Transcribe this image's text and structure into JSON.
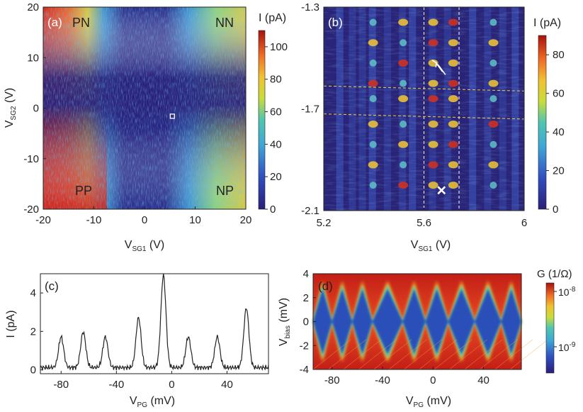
{
  "figure_panels": [
    "(a)",
    "(b)",
    "(c)",
    "(d)"
  ],
  "colors": {
    "map_deep": "#2a1f7a",
    "map_mid": "#2f6fd1",
    "map_cyan": "#3fb8c6",
    "map_yellow": "#f1e33a",
    "map_orange": "#f5832a",
    "map_red": "#d11f17",
    "guide_white": "#ffffff",
    "guide_yellow": "#f4d03f",
    "trace": "#222222"
  },
  "chart_data": [
    {
      "id": "a",
      "panel_label": "(a)",
      "type": "heatmap",
      "xlabel_main": "V",
      "xlabel_sub": "SG1",
      "xlabel_unit": " (V)",
      "ylabel_main": "V",
      "ylabel_sub": "SG2",
      "ylabel_unit": " (V)",
      "xlim": [
        -20,
        20
      ],
      "ylim": [
        -20,
        20
      ],
      "xticks": [
        "-20",
        "-10",
        "0",
        "10",
        "20"
      ],
      "yticks": [
        "20",
        "10",
        "0",
        "-10",
        "-20"
      ],
      "colorbar_label": "I (pA)",
      "colorbar_range": [
        0,
        110
      ],
      "colorbar_ticks": [
        "100",
        "80",
        "60",
        "40",
        "20",
        "0"
      ],
      "quadrant_labels": [
        "PN",
        "NN",
        "PP",
        "NP"
      ],
      "marker": {
        "type": "square",
        "x": 5.5,
        "y": -1.6
      }
    },
    {
      "id": "b",
      "panel_label": "(b)",
      "type": "heatmap",
      "xlabel_main": "V",
      "xlabel_sub": "SG1",
      "xlabel_unit": " (V)",
      "xlim": [
        5.2,
        6.0
      ],
      "ylim": [
        -2.1,
        -1.3
      ],
      "xticks": [
        "5.2",
        "5.6",
        "6"
      ],
      "yticks": [
        "-1.3",
        "-1.7",
        "-2.1"
      ],
      "colorbar_label": "I (pA)",
      "colorbar_range": [
        0,
        90
      ],
      "colorbar_ticks": [
        "80",
        "60",
        "40",
        "20",
        "0"
      ],
      "dashed_lines_x": [
        5.6,
        5.74
      ],
      "dashed_lines_y": [
        [
          -1.61,
          -1.63
        ],
        [
          -1.72,
          -1.74
        ]
      ],
      "cross_marker": {
        "x": 5.67,
        "y": -2.02
      },
      "arrow": {
        "x_from": 5.68,
        "y_from": -1.56,
        "x_to": 5.65,
        "y_to": -1.52
      }
    },
    {
      "id": "c",
      "panel_label": "(c)",
      "type": "line",
      "xlabel_main": "V",
      "xlabel_sub": "PG",
      "xlabel_unit": " (mV)",
      "ylabel": "I (pA)",
      "xlim": [
        -95,
        70
      ],
      "ylim": [
        -0.2,
        5
      ],
      "xticks": [
        "-80",
        "-40",
        "0",
        "40"
      ],
      "yticks": [
        "4",
        "2",
        "0"
      ],
      "peaks": [
        {
          "x": -80,
          "value": 1.6
        },
        {
          "x": -64,
          "value": 1.85
        },
        {
          "x": -48,
          "value": 1.6
        },
        {
          "x": -24,
          "value": 2.6
        },
        {
          "x": -6,
          "value": 4.8
        },
        {
          "x": 12,
          "value": 1.6
        },
        {
          "x": 33,
          "value": 1.6
        },
        {
          "x": 54,
          "value": 3.1
        }
      ]
    },
    {
      "id": "d",
      "panel_label": "(d)",
      "type": "heatmap",
      "xlabel_main": "V",
      "xlabel_sub": "PG",
      "xlabel_unit": " (mV)",
      "ylabel_main": "V",
      "ylabel_sub": "bias",
      "ylabel_unit": " (mV)",
      "xlim": [
        -95,
        70
      ],
      "ylim": [
        -4,
        4
      ],
      "xticks": [
        "-80",
        "-40",
        "0",
        "40"
      ],
      "yticks": [
        "4",
        "2",
        "0",
        "-2",
        "-4"
      ],
      "colorbar_label": "G (1/Ω)",
      "colorbar_ticks": [
        "10",
        "10"
      ],
      "colorbar_exponents": [
        "-8",
        "-9"
      ],
      "diamond_nodes_mV": [
        -95,
        -80,
        -64,
        -48,
        -24,
        -6,
        12,
        33,
        54,
        70
      ],
      "diamond_peak_mV": 2.8
    }
  ]
}
